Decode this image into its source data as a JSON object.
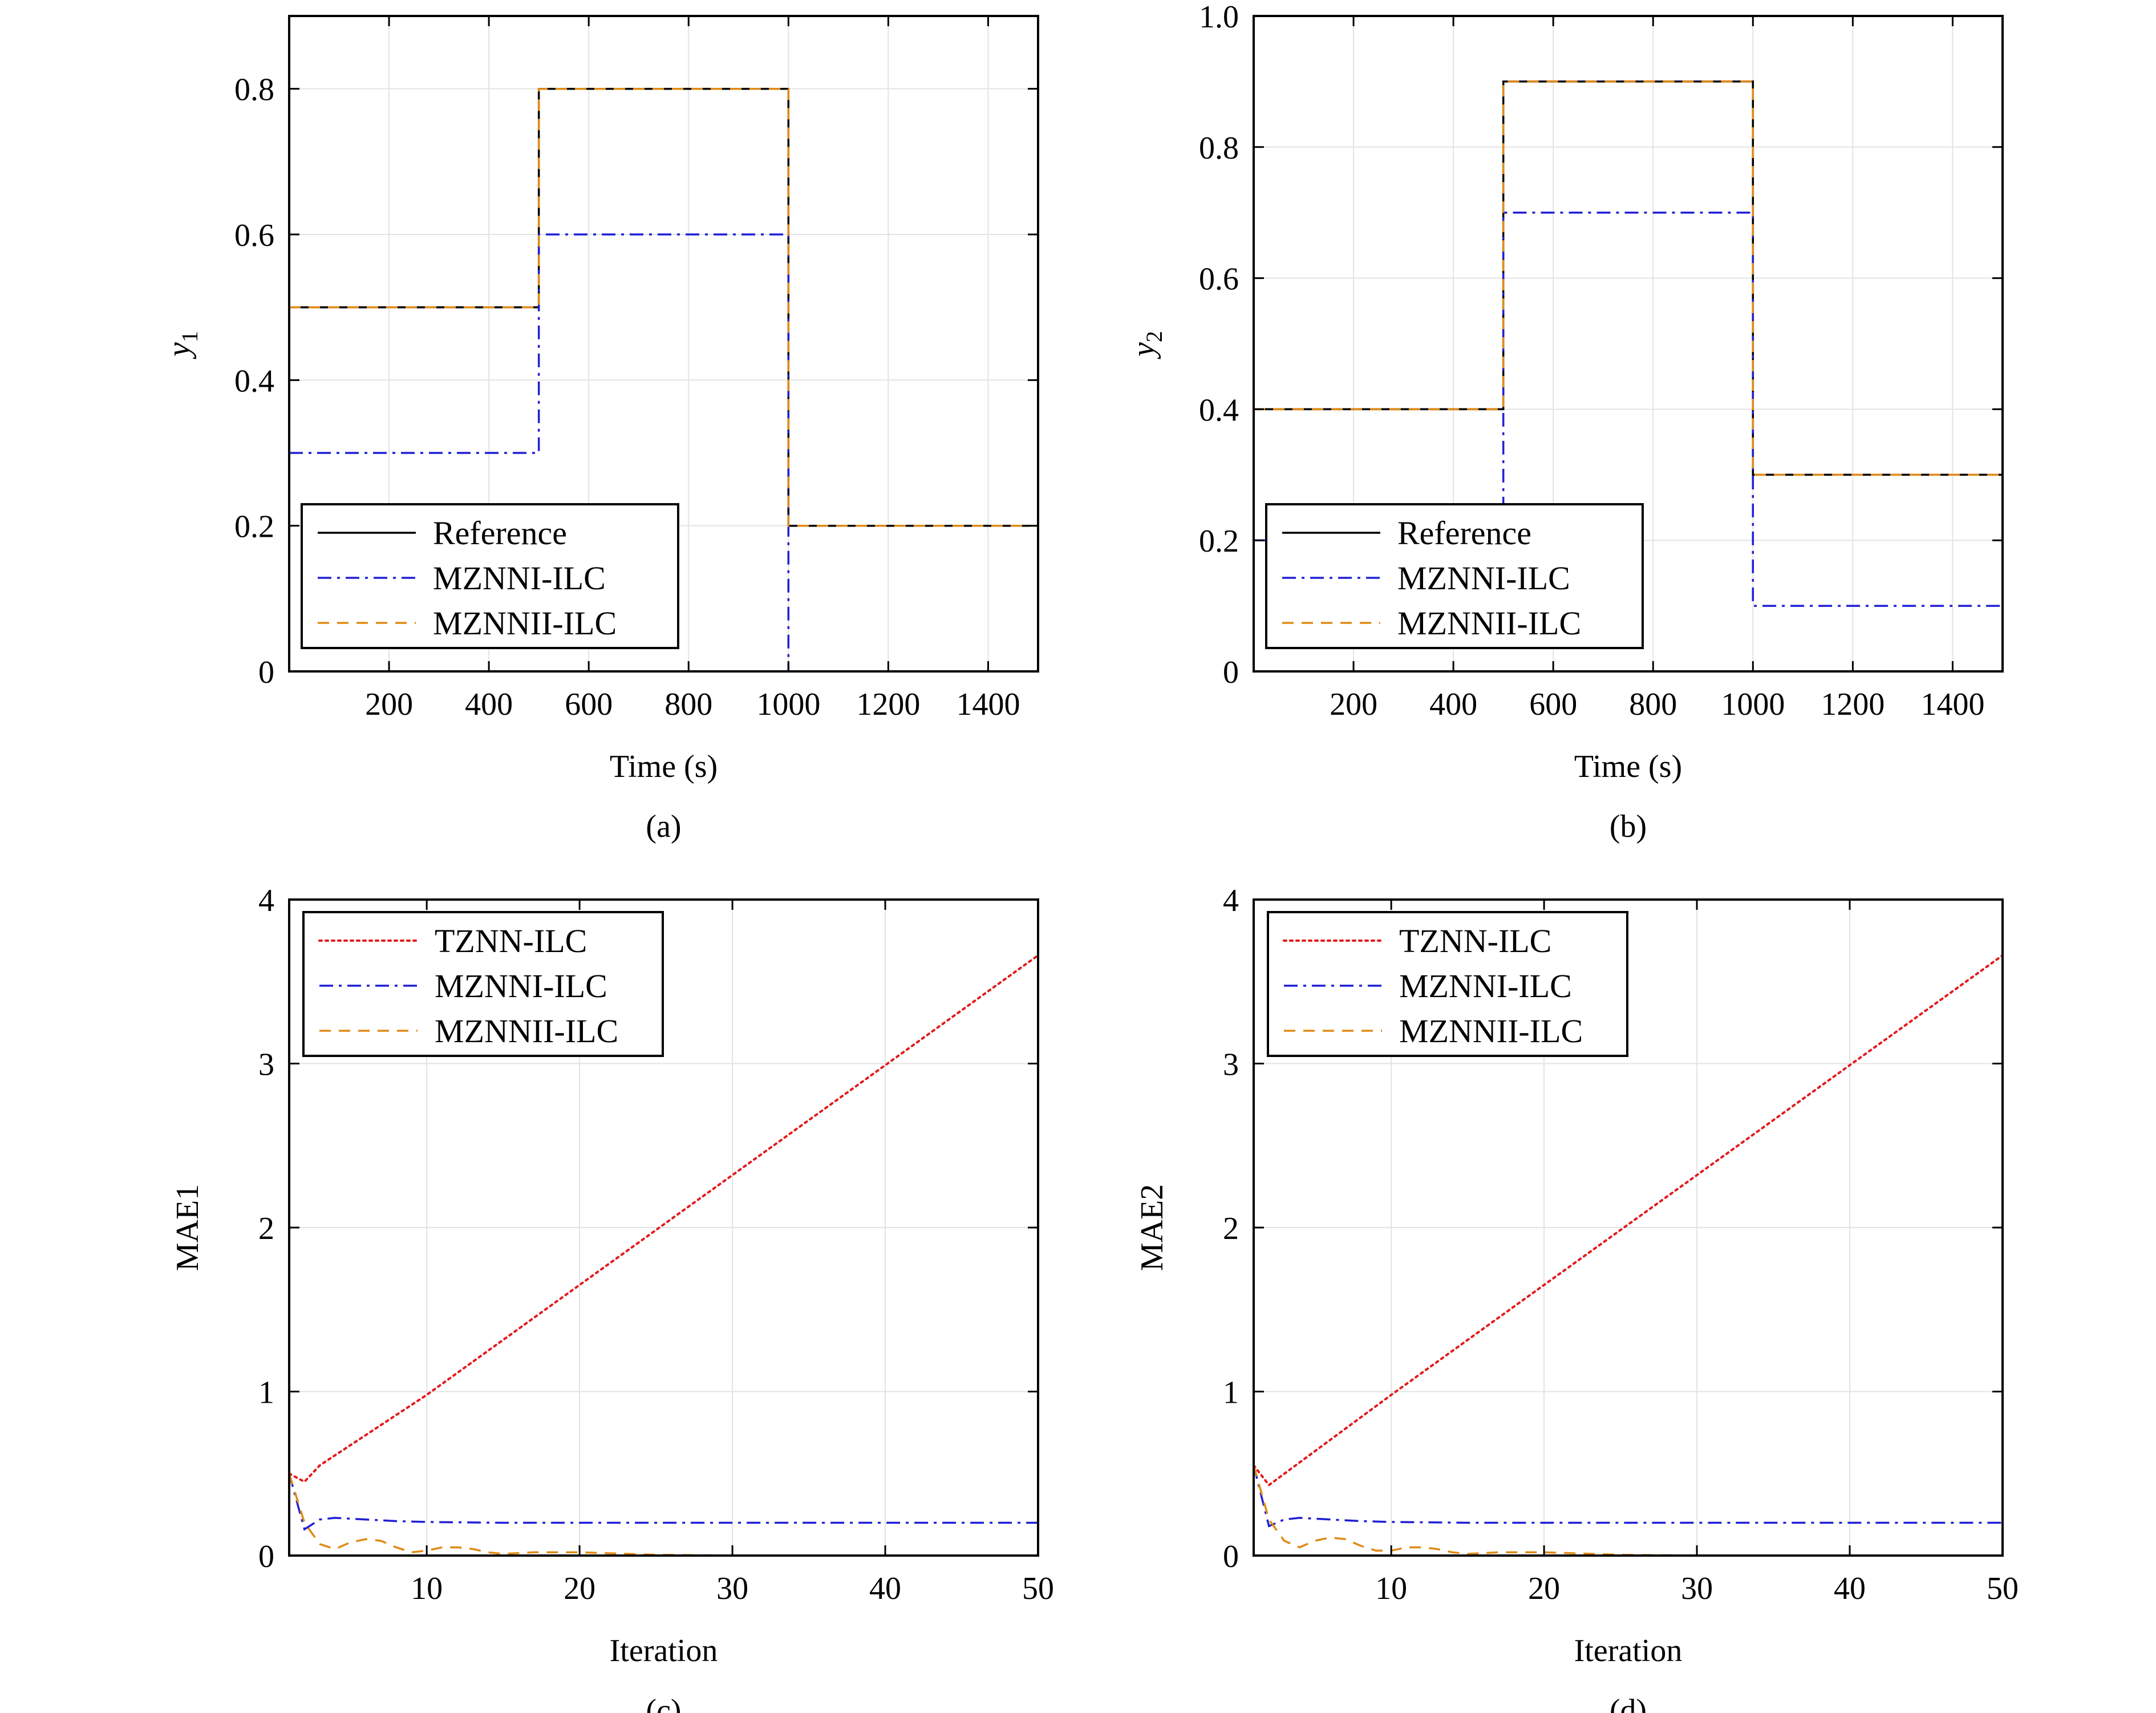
{
  "colors": {
    "Reference": "#000000",
    "TZNN-ILC": "#e31a1c",
    "MZNNI-ILC": "#1f1fd6",
    "MZNNII-ILC": "#e08a16"
  },
  "chart_data": [
    {
      "id": "a",
      "type": "line",
      "panel_label": "(a)",
      "xlabel": "Time (s)",
      "ylabel_base": "y",
      "ylabel_sub": "1",
      "xlim": [
        0,
        1500
      ],
      "ylim": [
        0,
        0.9
      ],
      "xticks": [
        200,
        400,
        600,
        800,
        1000,
        1200,
        1400
      ],
      "yticks": [
        0,
        0.2,
        0.4,
        0.6,
        0.8
      ],
      "ytick_labels": [
        "0",
        "0.2",
        "0.4",
        "0.6",
        "0.8"
      ],
      "grid": true,
      "legend": [
        "Reference",
        "MZNNI-ILC",
        "MZNNII-ILC"
      ],
      "series": [
        {
          "name": "Reference",
          "style": "solid",
          "x": [
            0,
            500,
            500,
            1000,
            1000,
            1500
          ],
          "y": [
            0.5,
            0.5,
            0.8,
            0.8,
            0.2,
            0.2
          ]
        },
        {
          "name": "MZNNI-ILC",
          "style": "dashdot",
          "x": [
            0,
            500,
            500,
            1000,
            1000,
            1500
          ],
          "y": [
            0.3,
            0.3,
            0.6,
            0.6,
            0.0,
            0.0
          ]
        },
        {
          "name": "MZNNII-ILC",
          "style": "dashed",
          "x": [
            0,
            500,
            500,
            1000,
            1000,
            1500
          ],
          "y": [
            0.5,
            0.5,
            0.8,
            0.8,
            0.2,
            0.2
          ]
        }
      ]
    },
    {
      "id": "b",
      "type": "line",
      "panel_label": "(b)",
      "xlabel": "Time (s)",
      "ylabel_base": "y",
      "ylabel_sub": "2",
      "xlim": [
        0,
        1500
      ],
      "ylim": [
        0,
        1.0
      ],
      "xticks": [
        200,
        400,
        600,
        800,
        1000,
        1200,
        1400
      ],
      "yticks": [
        0,
        0.2,
        0.4,
        0.6,
        0.8,
        1.0
      ],
      "ytick_labels": [
        "0",
        "0.2",
        "0.4",
        "0.6",
        "0.8",
        "1.0"
      ],
      "grid": true,
      "legend": [
        "Reference",
        "MZNNI-ILC",
        "MZNNII-ILC"
      ],
      "series": [
        {
          "name": "Reference",
          "style": "solid",
          "x": [
            0,
            500,
            500,
            1000,
            1000,
            1500
          ],
          "y": [
            0.4,
            0.4,
            0.9,
            0.9,
            0.3,
            0.3
          ]
        },
        {
          "name": "MZNNI-ILC",
          "style": "dashdot",
          "x": [
            0,
            500,
            500,
            1000,
            1000,
            1500
          ],
          "y": [
            0.2,
            0.2,
            0.7,
            0.7,
            0.1,
            0.1
          ]
        },
        {
          "name": "MZNNII-ILC",
          "style": "dashed",
          "x": [
            0,
            500,
            500,
            1000,
            1000,
            1500
          ],
          "y": [
            0.4,
            0.4,
            0.9,
            0.9,
            0.3,
            0.3
          ]
        }
      ]
    },
    {
      "id": "c",
      "type": "line",
      "panel_label": "(c)",
      "xlabel": "Iteration",
      "ylabel_base": "MAE1",
      "ylabel_sub": "",
      "xlim": [
        1,
        50
      ],
      "ylim": [
        0,
        4
      ],
      "xticks": [
        10,
        20,
        30,
        40,
        50
      ],
      "yticks": [
        0,
        1,
        2,
        3,
        4
      ],
      "ytick_labels": [
        "0",
        "1",
        "2",
        "3",
        "4"
      ],
      "grid": true,
      "legend": [
        "TZNN-ILC",
        "MZNNI-ILC",
        "MZNNII-ILC"
      ],
      "series": [
        {
          "name": "TZNN-ILC",
          "style": "dotted",
          "x": [
            1,
            2,
            3,
            10,
            20,
            30,
            40,
            50
          ],
          "y": [
            0.5,
            0.45,
            0.55,
            0.98,
            1.65,
            2.32,
            2.99,
            3.66
          ]
        },
        {
          "name": "MZNNI-ILC",
          "style": "dashdot",
          "x": [
            1,
            2,
            3,
            4,
            6,
            8,
            10,
            15,
            20,
            30,
            40,
            50
          ],
          "y": [
            0.5,
            0.16,
            0.22,
            0.23,
            0.22,
            0.21,
            0.205,
            0.2,
            0.2,
            0.2,
            0.2,
            0.2
          ]
        },
        {
          "name": "MZNNII-ILC",
          "style": "dashed",
          "x": [
            1,
            2,
            3,
            4,
            5,
            6,
            7,
            8,
            9,
            10,
            11,
            12,
            13,
            14,
            15,
            17,
            20,
            25,
            30,
            40,
            50
          ],
          "y": [
            0.5,
            0.2,
            0.07,
            0.04,
            0.08,
            0.1,
            0.09,
            0.05,
            0.02,
            0.03,
            0.05,
            0.05,
            0.04,
            0.02,
            0.01,
            0.02,
            0.02,
            0.005,
            0.0,
            0.0,
            0.0
          ]
        }
      ]
    },
    {
      "id": "d",
      "type": "line",
      "panel_label": "(d)",
      "xlabel": "Iteration",
      "ylabel_base": "MAE2",
      "ylabel_sub": "",
      "xlim": [
        1,
        50
      ],
      "ylim": [
        0,
        4
      ],
      "xticks": [
        10,
        20,
        30,
        40,
        50
      ],
      "yticks": [
        0,
        1,
        2,
        3,
        4
      ],
      "ytick_labels": [
        "0",
        "1",
        "2",
        "3",
        "4"
      ],
      "grid": true,
      "legend": [
        "TZNN-ILC",
        "MZNNI-ILC",
        "MZNNII-ILC"
      ],
      "series": [
        {
          "name": "TZNN-ILC",
          "style": "dotted",
          "x": [
            1,
            2,
            10,
            20,
            30,
            40,
            50
          ],
          "y": [
            0.55,
            0.43,
            0.98,
            1.65,
            2.32,
            2.99,
            3.66
          ]
        },
        {
          "name": "MZNNI-ILC",
          "style": "dashdot",
          "x": [
            1,
            2,
            3,
            4,
            6,
            8,
            10,
            15,
            20,
            30,
            40,
            50
          ],
          "y": [
            0.55,
            0.18,
            0.22,
            0.23,
            0.22,
            0.21,
            0.205,
            0.2,
            0.2,
            0.2,
            0.2,
            0.2
          ]
        },
        {
          "name": "MZNNII-ILC",
          "style": "dashed",
          "x": [
            1,
            2,
            3,
            4,
            5,
            6,
            7,
            8,
            9,
            10,
            11,
            12,
            13,
            14,
            15,
            17,
            20,
            25,
            30,
            40,
            50
          ],
          "y": [
            0.55,
            0.22,
            0.09,
            0.05,
            0.09,
            0.11,
            0.1,
            0.06,
            0.03,
            0.03,
            0.05,
            0.05,
            0.04,
            0.02,
            0.01,
            0.02,
            0.02,
            0.005,
            0.0,
            0.0,
            0.0
          ]
        }
      ]
    }
  ]
}
